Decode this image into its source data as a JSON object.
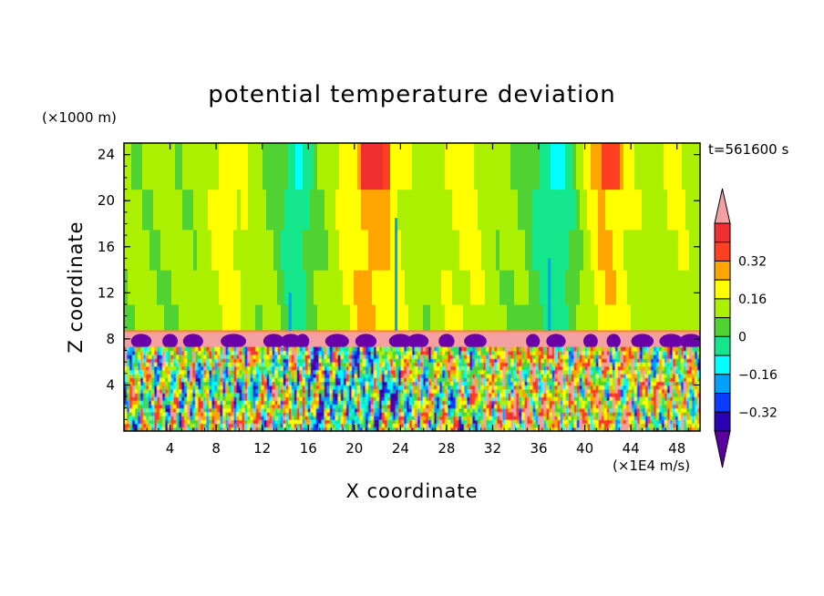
{
  "chart_data": {
    "type": "heatmap",
    "title": "potential temperature deviation",
    "xlabel": "X coordinate",
    "ylabel": "Z coordinate",
    "x_unit": "(×1E4 m/s)",
    "y_unit": "(×1000 m)",
    "time_label": "t=561600 s",
    "xlim": [
      0,
      50
    ],
    "ylim": [
      0,
      25
    ],
    "x_ticks": [
      "4",
      "8",
      "12",
      "16",
      "20",
      "24",
      "28",
      "32",
      "36",
      "40",
      "44",
      "48"
    ],
    "y_ticks": [
      "4",
      "8",
      "12",
      "16",
      "20",
      "24"
    ],
    "colorbar": {
      "levels": [
        -0.48,
        -0.4,
        -0.32,
        -0.24,
        -0.16,
        -0.08,
        0,
        0.08,
        0.16,
        0.24,
        0.32,
        0.4
      ],
      "tick_labels": [
        "0.32",
        "0.16",
        "0",
        "−0.16",
        "−0.32"
      ],
      "colors": [
        "#5a00a0",
        "#2a00b4",
        "#0a3cff",
        "#00a0ff",
        "#00ffff",
        "#14e68c",
        "#50d232",
        "#aaf000",
        "#ffff00",
        "#ffa500",
        "#ff4020",
        "#f03030",
        "#f5a0a0"
      ]
    },
    "regions": {
      "upper_layer": "mostly near 0 (green) with vertical bands of -0.16 (cyan) and +0.16 (yellow/orange)",
      "inversion_layer_z": [
        7.2,
        8.7
      ],
      "lower_layer": "turbulent mix spanning the full range -0.4 to +0.4"
    }
  }
}
